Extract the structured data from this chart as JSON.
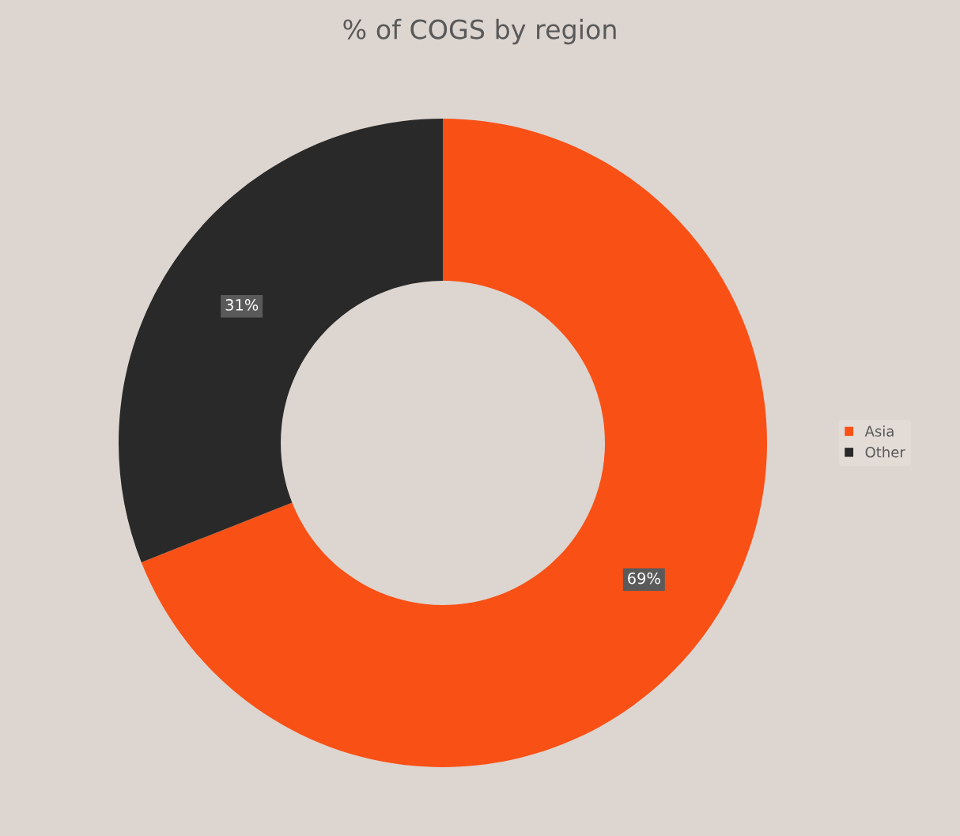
{
  "chart_data": {
    "type": "donut",
    "title": "% of COGS by region",
    "categories": [
      "Asia",
      "Other"
    ],
    "values": [
      69,
      31
    ],
    "colors": [
      "#f95016",
      "#292929"
    ],
    "value_labels": [
      "69%",
      "31%"
    ],
    "legend": "right"
  }
}
